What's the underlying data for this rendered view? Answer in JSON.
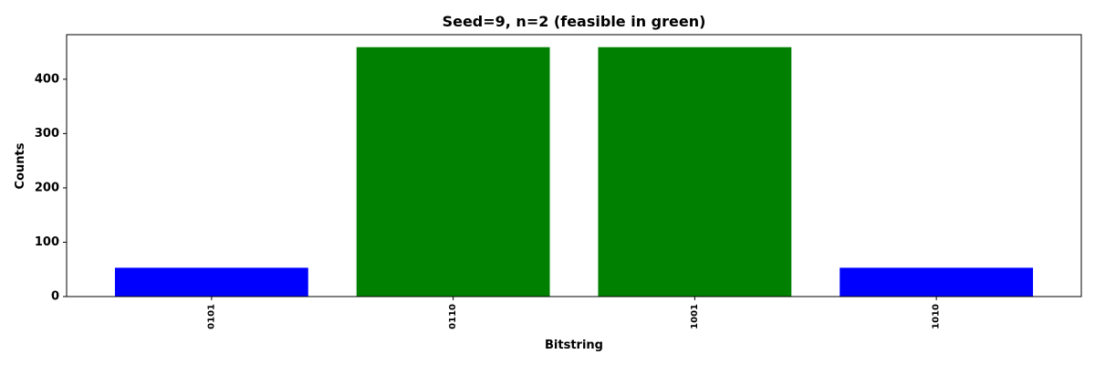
{
  "chart_data": {
    "type": "bar",
    "title": "Seed=9, n=2 (feasible in green)",
    "xlabel": "Bitstring",
    "ylabel": "Counts",
    "categories": [
      "0101",
      "0110",
      "1001",
      "1010"
    ],
    "values": [
      53,
      459,
      459,
      53
    ],
    "bar_colors": [
      "#0000ff",
      "#008000",
      "#008000",
      "#0000ff"
    ],
    "feasible": [
      false,
      true,
      true,
      false
    ],
    "yticks": [
      0,
      100,
      200,
      300,
      400
    ],
    "ylim": [
      0,
      482
    ],
    "grid": false,
    "legend": "none"
  },
  "colors": {
    "feasible": "#008000",
    "infeasible": "#0000ff",
    "axes": "#000000",
    "background": "#ffffff"
  }
}
